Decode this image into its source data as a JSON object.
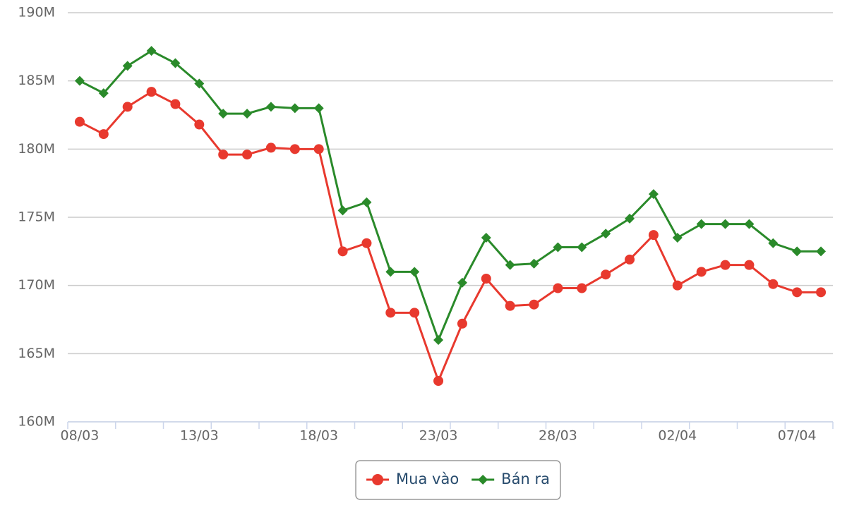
{
  "chart_data": {
    "type": "line",
    "categories": [
      "08/03",
      null,
      null,
      null,
      null,
      "13/03",
      null,
      null,
      null,
      null,
      "18/03",
      null,
      null,
      null,
      null,
      "23/03",
      null,
      null,
      null,
      null,
      "28/03",
      null,
      null,
      null,
      null,
      "02/04",
      null,
      null,
      null,
      null,
      "07/04",
      null
    ],
    "series": [
      {
        "name": "Mua vào",
        "color": "#e8392e",
        "marker": "circle",
        "values": [
          182000000,
          181100000,
          183100000,
          184200000,
          183300000,
          181800000,
          179600000,
          179600000,
          180100000,
          180000000,
          180000000,
          172500000,
          173100000,
          168000000,
          168000000,
          163000000,
          167200000,
          170500000,
          168500000,
          168600000,
          169800000,
          169800000,
          170800000,
          171900000,
          173700000,
          170000000,
          171000000,
          171500000,
          171500000,
          170100000,
          169500000,
          169500000
        ]
      },
      {
        "name": "Bán ra",
        "color": "#2a8a2a",
        "marker": "diamond",
        "values": [
          185000000,
          184100000,
          186100000,
          187200000,
          186300000,
          184800000,
          182600000,
          182600000,
          183100000,
          183000000,
          183000000,
          175500000,
          176100000,
          171000000,
          171000000,
          166000000,
          170200000,
          173500000,
          171500000,
          171600000,
          172800000,
          172800000,
          173800000,
          174900000,
          176700000,
          173500000,
          174500000,
          174500000,
          174500000,
          173100000,
          172500000,
          172500000
        ]
      }
    ],
    "ylim": [
      160000000,
      190000000
    ],
    "yticks": [
      {
        "value": 160000000,
        "label": "160M"
      },
      {
        "value": 165000000,
        "label": "165M"
      },
      {
        "value": 170000000,
        "label": "170M"
      },
      {
        "value": 175000000,
        "label": "175M"
      },
      {
        "value": 180000000,
        "label": "180M"
      },
      {
        "value": 185000000,
        "label": "185M"
      },
      {
        "value": 190000000,
        "label": "190M"
      }
    ],
    "grid": true,
    "legend": "bottom"
  }
}
